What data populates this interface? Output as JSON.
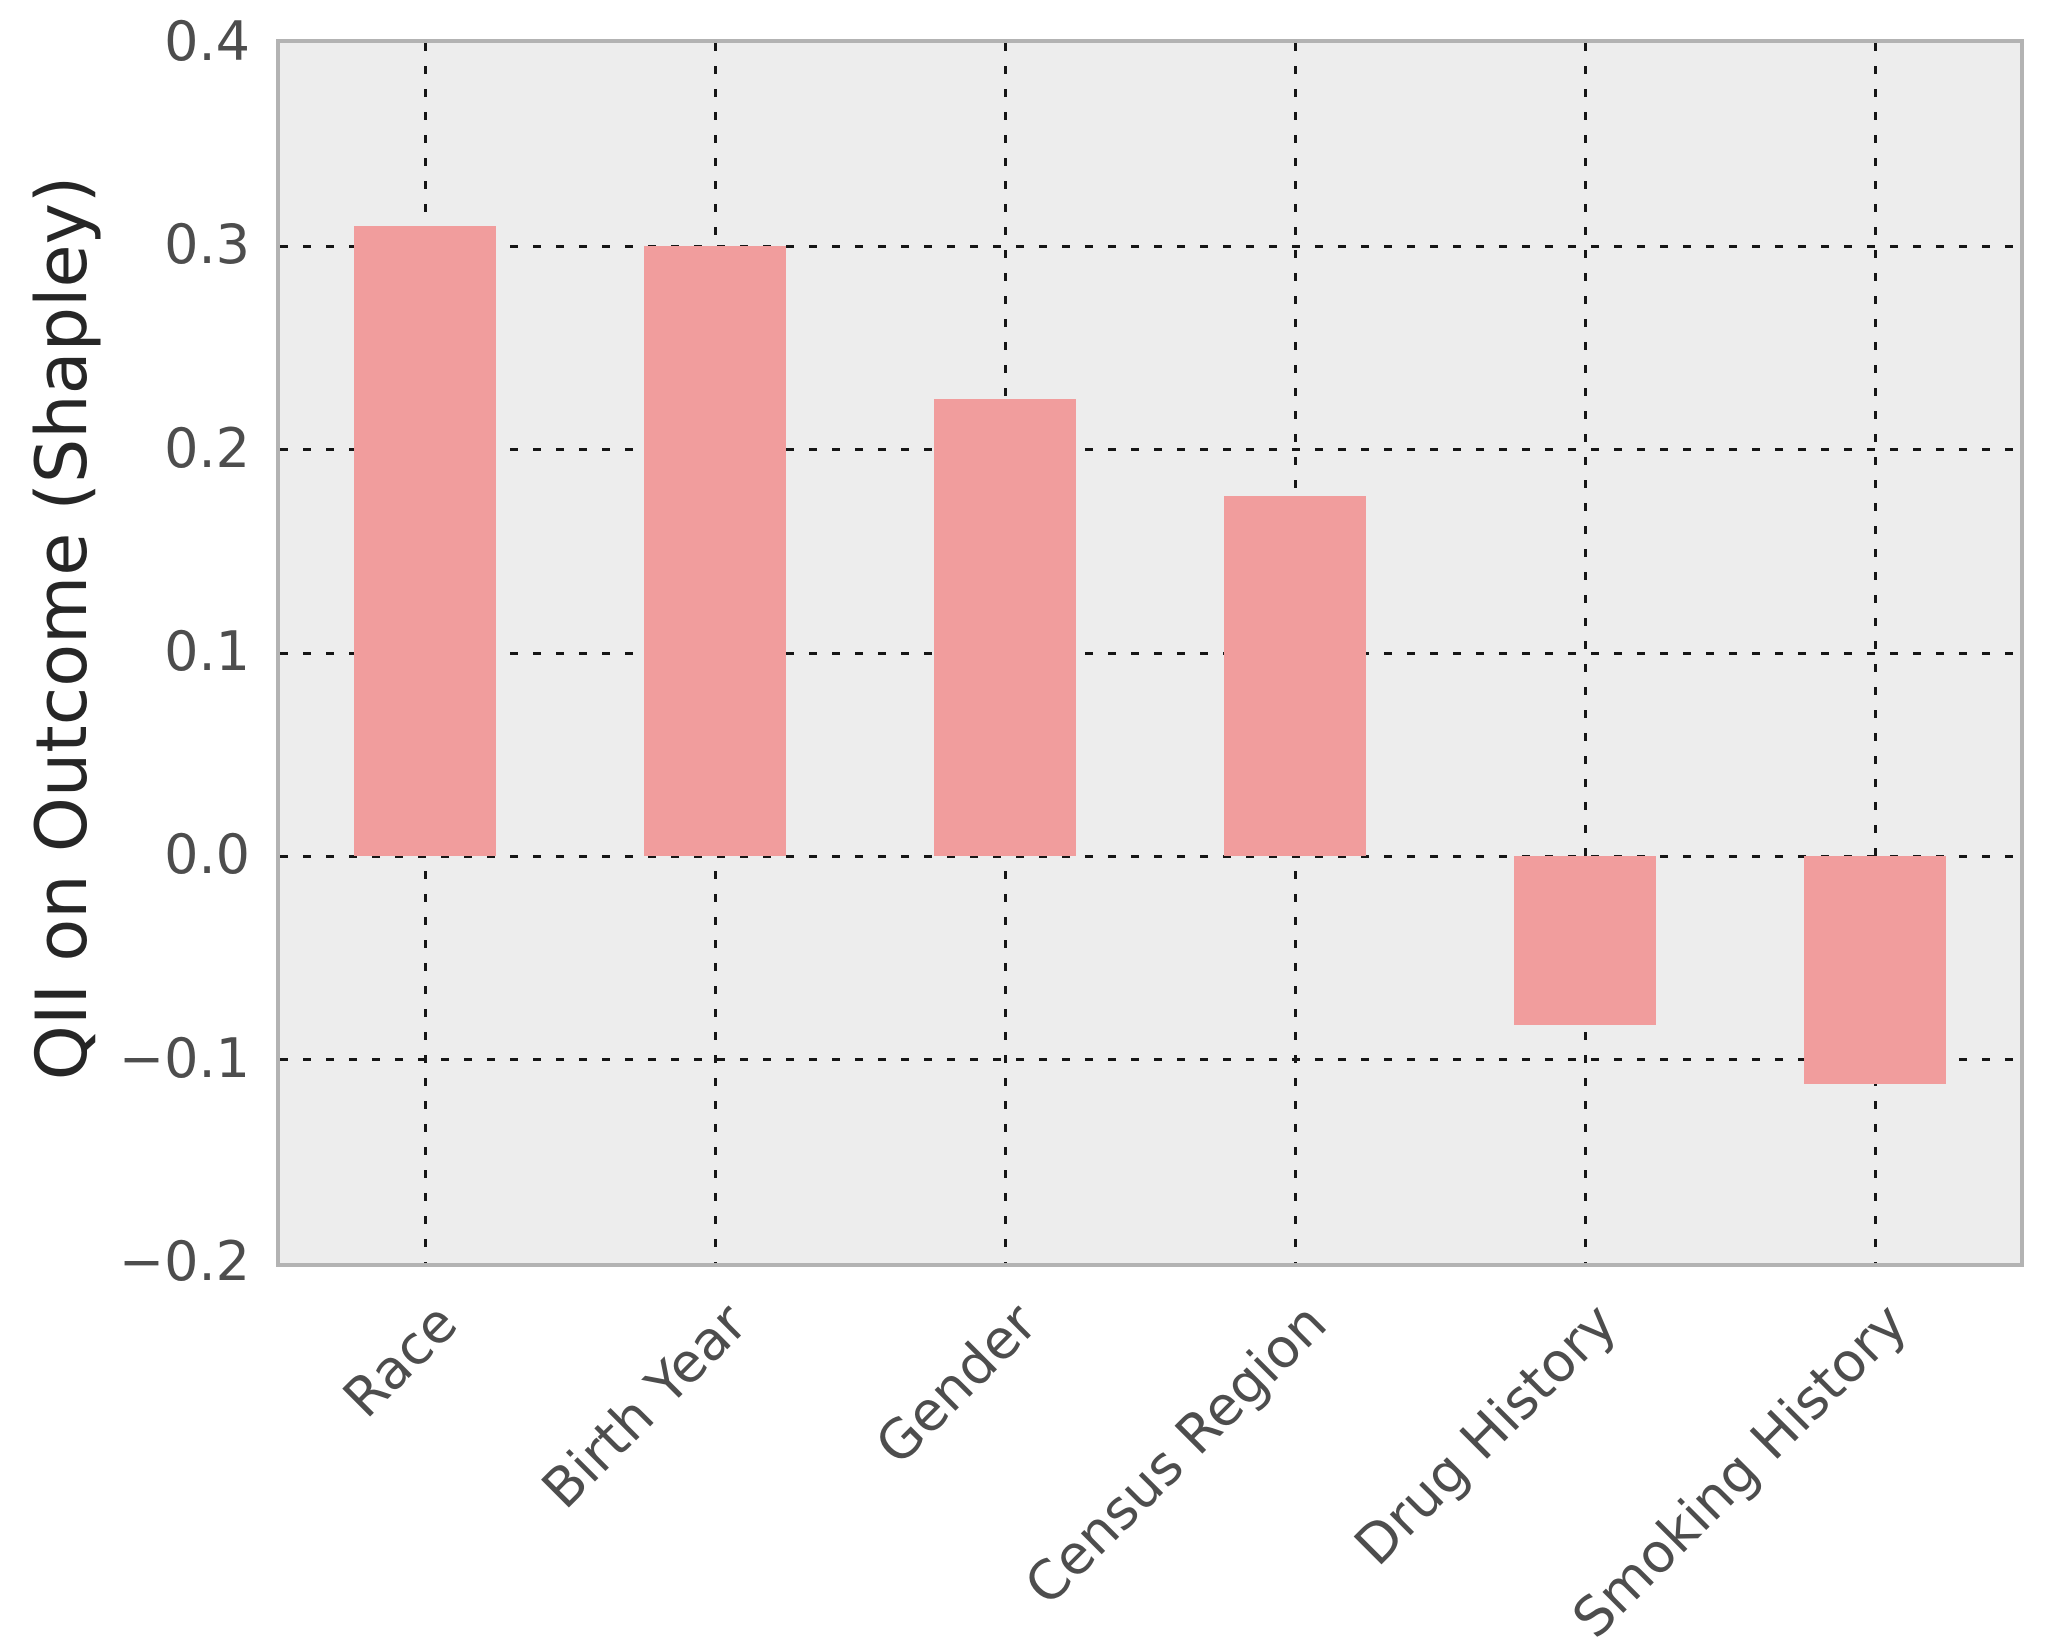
{
  "figure": {
    "title": "",
    "background_color": "#ffffff"
  },
  "chart_data": {
    "type": "bar",
    "title": "",
    "xlabel": "",
    "ylabel": "QII on Outcome (Shapley)",
    "categories": [
      "Race",
      "Birth Year",
      "Gender",
      "Census Region",
      "Drug History",
      "Smoking History"
    ],
    "values": [
      0.31,
      0.3,
      0.225,
      0.177,
      -0.083,
      -0.112
    ],
    "ylim": [
      -0.2,
      0.4
    ],
    "yticks": [
      0.4,
      0.3,
      0.2,
      0.1,
      0.0,
      -0.1,
      -0.2
    ],
    "ytick_labels": [
      "0.4",
      "0.3",
      "0.2",
      "0.1",
      "0.0",
      "−0.1",
      "−0.2"
    ],
    "grid": "dotted, both axes",
    "legend_position": "none",
    "x_label_rotation_deg": 45,
    "bar_width_frac": 0.49,
    "bar_color": "#f19d9d",
    "plot_background": "#ededed",
    "grid_color": "#161616",
    "tick_label_color": "#4d4d4d",
    "axis_label_color": "#262626",
    "border_color": "#b3b3b3"
  }
}
